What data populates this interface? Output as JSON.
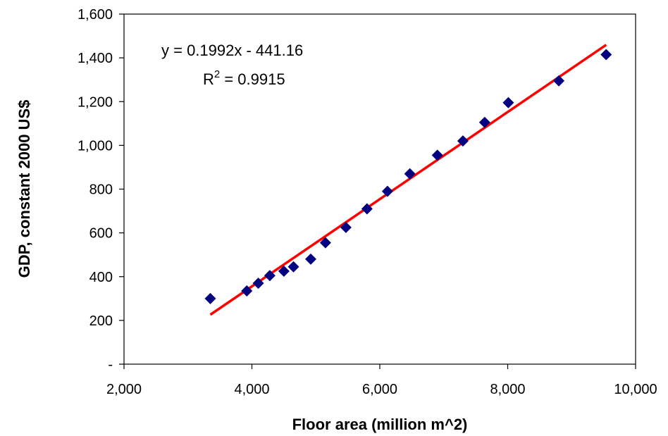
{
  "chart_data": {
    "type": "scatter",
    "title": "",
    "xlabel": "Floor area (million m^2)",
    "ylabel": "GDP, constant 2000 US$",
    "xlim": [
      2000,
      10000
    ],
    "ylim": [
      0,
      1600
    ],
    "x_ticks": [
      2000,
      4000,
      6000,
      8000,
      10000
    ],
    "x_tick_labels": [
      "2,000",
      "4,000",
      "6,000",
      "8,000",
      "10,000"
    ],
    "y_ticks": [
      0,
      200,
      400,
      600,
      800,
      1000,
      1200,
      1400,
      1600
    ],
    "y_tick_labels": [
      "-",
      "200",
      "400",
      "600",
      "800",
      "1,000",
      "1,200",
      "1,400",
      "1,600"
    ],
    "grid": false,
    "series": [
      {
        "marker": "diamond",
        "color": "#000080",
        "points": [
          {
            "x": 3350,
            "y": 300
          },
          {
            "x": 3920,
            "y": 335
          },
          {
            "x": 4100,
            "y": 370
          },
          {
            "x": 4280,
            "y": 405
          },
          {
            "x": 4500,
            "y": 425
          },
          {
            "x": 4650,
            "y": 445
          },
          {
            "x": 4920,
            "y": 480
          },
          {
            "x": 5150,
            "y": 555
          },
          {
            "x": 5470,
            "y": 625
          },
          {
            "x": 5800,
            "y": 710
          },
          {
            "x": 6120,
            "y": 790
          },
          {
            "x": 6470,
            "y": 870
          },
          {
            "x": 6900,
            "y": 955
          },
          {
            "x": 7300,
            "y": 1020
          },
          {
            "x": 7640,
            "y": 1105
          },
          {
            "x": 8010,
            "y": 1195
          },
          {
            "x": 8800,
            "y": 1295
          },
          {
            "x": 9540,
            "y": 1415
          }
        ]
      }
    ],
    "trendline": {
      "type": "linear",
      "slope": 0.1992,
      "intercept": -441.16,
      "x_range": [
        3350,
        9540
      ],
      "color": "#ff0000"
    },
    "annotations": {
      "equation": "y = 0.1992x - 441.16",
      "r2_prefix": "R",
      "r2_sup": "2",
      "r2_suffix": " = 0.9915"
    }
  }
}
